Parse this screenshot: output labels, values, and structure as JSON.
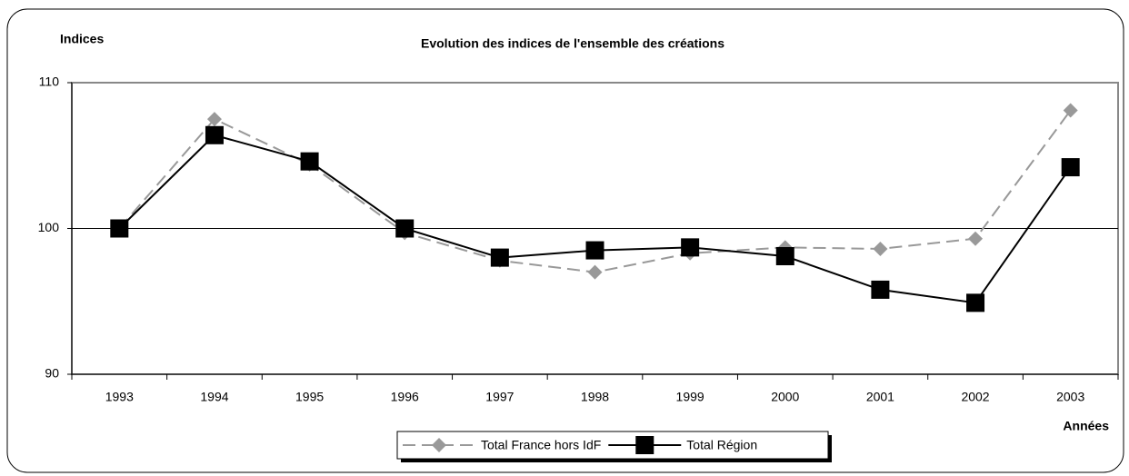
{
  "chart_data": {
    "type": "line",
    "title": "Evolution des indices de l'ensemble des créations",
    "y_label": "Indices",
    "x_label": "Années",
    "categories": [
      "1993",
      "1994",
      "1995",
      "1996",
      "1997",
      "1998",
      "1999",
      "2000",
      "2001",
      "2002",
      "2003"
    ],
    "series": [
      {
        "name": "Total France hors IdF",
        "color": "#999999",
        "dashed": true,
        "marker": "diamond",
        "values": [
          100,
          107.5,
          104.4,
          99.7,
          97.8,
          97.0,
          98.3,
          98.7,
          98.6,
          99.3,
          108.1
        ]
      },
      {
        "name": "Total Région",
        "color": "#000000",
        "dashed": false,
        "marker": "square",
        "values": [
          100,
          106.4,
          104.6,
          100,
          98.0,
          98.5,
          98.7,
          98.1,
          95.8,
          94.9,
          104.2
        ]
      }
    ],
    "ylim": [
      90,
      110
    ],
    "yticks": [
      90,
      100,
      110
    ],
    "grid": true,
    "legend": "bottom"
  }
}
